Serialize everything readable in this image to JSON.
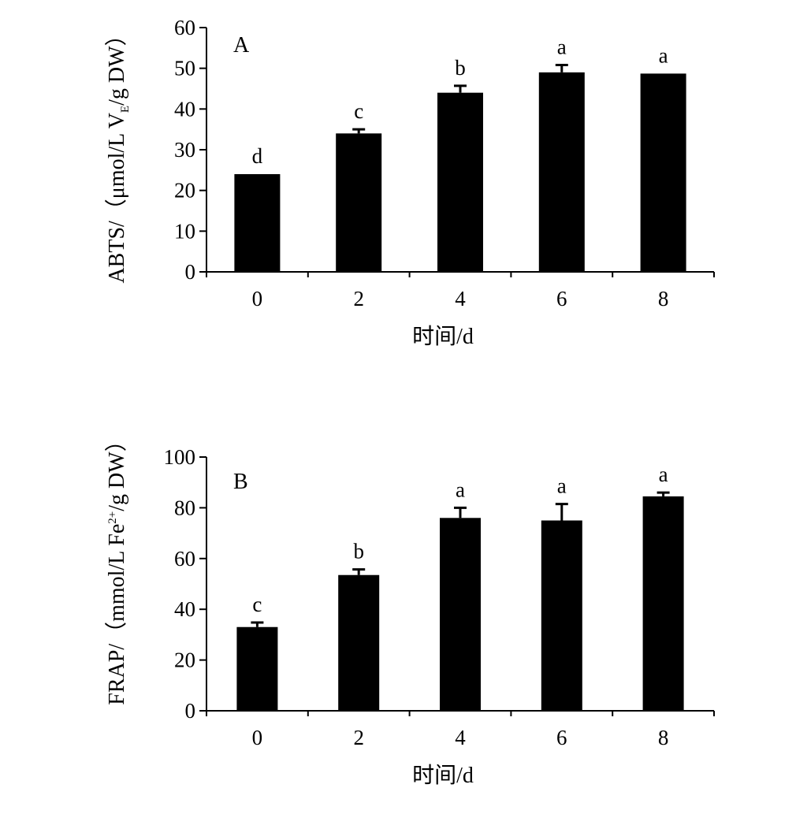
{
  "chart_data": [
    {
      "type": "bar",
      "panel_label": "A",
      "categories": [
        "0",
        "2",
        "4",
        "6",
        "8"
      ],
      "values": [
        24.0,
        34.0,
        44.0,
        49.0,
        48.7
      ],
      "error": [
        0.0,
        1.0,
        1.7,
        1.8,
        0.0
      ],
      "significance": [
        "d",
        "c",
        "b",
        "a",
        "a"
      ],
      "ylabel": {
        "main": "ABTS/（μmol/L V",
        "sub": "E",
        "tail": "/g DW）"
      },
      "xlabel": "时间/d",
      "ylim": [
        0,
        60
      ],
      "yticks": [
        "0",
        "10",
        "20",
        "30",
        "40",
        "50",
        "60"
      ],
      "bar_color": "#000000"
    },
    {
      "type": "bar",
      "panel_label": "B",
      "categories": [
        "0",
        "2",
        "4",
        "6",
        "8"
      ],
      "values": [
        33.0,
        53.5,
        76.0,
        75.0,
        84.5
      ],
      "error": [
        1.8,
        2.2,
        4.0,
        6.5,
        1.5
      ],
      "significance": [
        "c",
        "b",
        "a",
        "a",
        "a"
      ],
      "ylabel": {
        "main": "FRAP/（mmol/L Fe",
        "sup": "2+",
        "tail": "/g DW）"
      },
      "xlabel": "时间/d",
      "ylim": [
        0,
        100
      ],
      "yticks": [
        "0",
        "20",
        "40",
        "60",
        "80",
        "100"
      ],
      "bar_color": "#000000"
    }
  ]
}
